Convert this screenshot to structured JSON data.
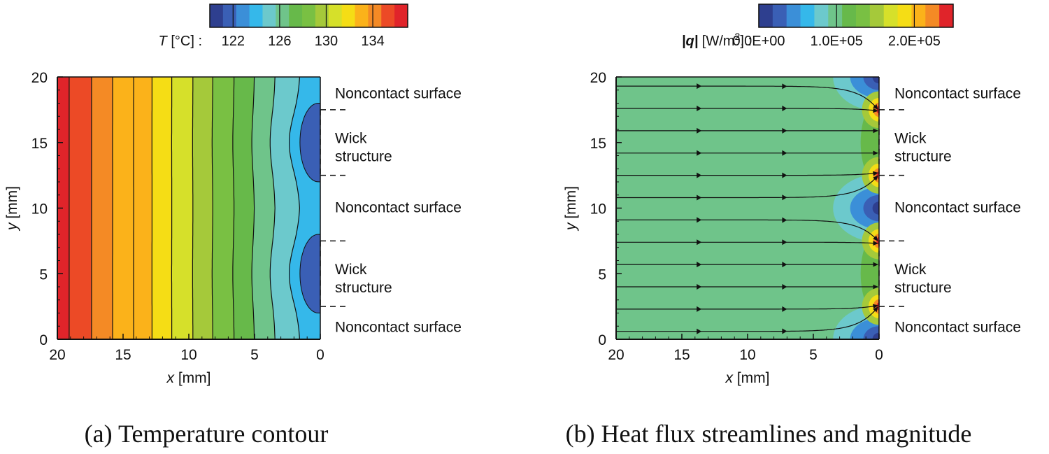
{
  "chart_data": [
    {
      "type": "heatmap",
      "caption": "(a) Temperature contour",
      "xlabel_var": "x",
      "xlabel_unit": "[mm]",
      "ylabel_var": "y",
      "ylabel_unit": "[mm]",
      "xlim": [
        20,
        0
      ],
      "ylim": [
        0,
        20
      ],
      "x_ticks": [
        20,
        15,
        10,
        5,
        0
      ],
      "y_ticks": [
        0,
        5,
        10,
        15,
        20
      ],
      "colorbar": {
        "label_var": "T",
        "label_unit": "[°C] :",
        "ticks": [
          "122",
          "126",
          "130",
          "134"
        ],
        "tick_values": [
          122,
          126,
          130,
          134
        ],
        "range": [
          120,
          137
        ],
        "colors": [
          "#2e3f8f",
          "#3a5fb5",
          "#3b8fd8",
          "#35b8ea",
          "#6cc9cc",
          "#6fc48a",
          "#67b94a",
          "#79c043",
          "#a5c93a",
          "#d6e02a",
          "#f5dd15",
          "#fbb21a",
          "#f48a25",
          "#ec4a26",
          "#e0242a"
        ]
      },
      "contour_levels": [
        {
          "x_at_edge": 19.1,
          "value": 136
        },
        {
          "x_at_edge": 17.4,
          "value": 135
        },
        {
          "x_at_edge": 15.8,
          "value": 134
        },
        {
          "x_at_edge": 14.2,
          "value": 133
        },
        {
          "x_at_edge": 12.8,
          "value": 132
        },
        {
          "x_at_edge": 11.3,
          "value": 131
        },
        {
          "x_at_edge": 9.7,
          "value": 130
        },
        {
          "x_at_edge": 8.2,
          "value": 129
        },
        {
          "x_at_edge": 6.6,
          "value": 128
        },
        {
          "x_at_edge": 5.1,
          "value": 127
        },
        {
          "x_at_edge": 3.6,
          "value": 126
        },
        {
          "x_at_edge": 1.9,
          "value": 125
        }
      ],
      "annotations": [
        {
          "text": "Noncontact surface",
          "y": 18.8
        },
        {
          "text": "Wick",
          "y": 15.4
        },
        {
          "text": "structure",
          "y": 14.0
        },
        {
          "text": "Noncontact surface",
          "y": 10.1
        },
        {
          "text": "Wick",
          "y": 5.4
        },
        {
          "text": "structure",
          "y": 4.0
        },
        {
          "text": "Noncontact surface",
          "y": 1.0
        }
      ],
      "wick_regions": [
        [
          12.5,
          17.5
        ],
        [
          2.5,
          7.5
        ]
      ]
    },
    {
      "type": "heatmap",
      "caption": "(b) Heat flux streamlines and magnitude",
      "xlabel_var": "x",
      "xlabel_unit": "[mm]",
      "ylabel_var": "y",
      "ylabel_unit": "[mm]",
      "xlim": [
        20,
        0
      ],
      "ylim": [
        0,
        20
      ],
      "x_ticks": [
        20,
        15,
        10,
        5,
        0
      ],
      "y_ticks": [
        0,
        5,
        10,
        15,
        20
      ],
      "colorbar": {
        "label_var": "|q|",
        "label_unit": "[W/m",
        "label_sup": "2",
        "label_end": "] :",
        "ticks": [
          "0.0E+00",
          "1.0E+05",
          "2.0E+05"
        ],
        "tick_values": [
          0,
          100000,
          200000
        ],
        "range": [
          0,
          250000
        ],
        "colors": [
          "#2e3f8f",
          "#3a5fb5",
          "#3b8fd8",
          "#35b8ea",
          "#6cc9cc",
          "#6fc48a",
          "#67b94a",
          "#79c043",
          "#a5c93a",
          "#d6e02a",
          "#f5dd15",
          "#fbb21a",
          "#f48a25",
          "#e0242a"
        ]
      },
      "field_value_bulk": 100000,
      "streamline_start_y": [
        0.6,
        2.3,
        4.0,
        5.7,
        7.4,
        9.1,
        10.8,
        12.5,
        14.2,
        15.9,
        17.6,
        19.3
      ],
      "annotations": [
        {
          "text": "Noncontact surface",
          "y": 18.8
        },
        {
          "text": "Wick",
          "y": 15.4
        },
        {
          "text": "structure",
          "y": 14.0
        },
        {
          "text": "Noncontact surface",
          "y": 10.1
        },
        {
          "text": "Wick",
          "y": 5.4
        },
        {
          "text": "structure",
          "y": 4.0
        },
        {
          "text": "Noncontact surface",
          "y": 1.0
        }
      ],
      "wick_regions": [
        [
          12.5,
          17.5
        ],
        [
          2.5,
          7.5
        ]
      ]
    }
  ]
}
